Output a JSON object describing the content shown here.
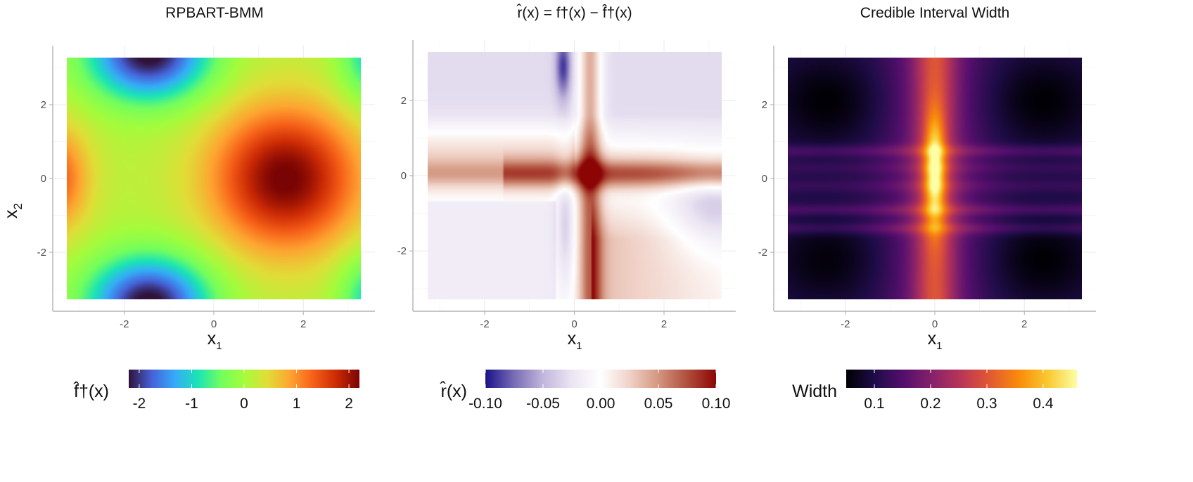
{
  "chart_data": [
    {
      "type": "heatmap",
      "title": "RPBART-BMM",
      "xlabel": "x1",
      "ylabel": "x2",
      "xlim": [
        -3.6,
        3.6
      ],
      "ylim": [
        -3.6,
        3.6
      ],
      "x_ticks": [
        "-2",
        "0",
        "2"
      ],
      "y_ticks": [
        "-2",
        "0",
        "2"
      ],
      "colorscale": "turbo",
      "legend": {
        "title": "f̂†(x)",
        "range": [
          -2.2,
          2.2
        ],
        "ticks": [
          "-2",
          "-1",
          "0",
          "1",
          "2"
        ],
        "placement": "bottom"
      },
      "features": [
        {
          "x": 1.6,
          "y": 0.0,
          "value": 2.2,
          "kind": "maximum"
        },
        {
          "x": -3.1,
          "y": 0.0,
          "value": 1.1,
          "kind": "local-maximum"
        },
        {
          "x": -1.5,
          "y": 3.1,
          "value": -2.2,
          "kind": "minimum"
        },
        {
          "x": -1.5,
          "y": -3.1,
          "value": -2.2,
          "kind": "minimum"
        }
      ]
    },
    {
      "type": "heatmap",
      "title": "r̂(x) = f†(x) − f̂†(x)",
      "xlabel": "x1",
      "ylabel": "",
      "xlim": [
        -3.6,
        3.6
      ],
      "ylim": [
        -3.6,
        3.6
      ],
      "x_ticks": [
        "-2",
        "0",
        "2"
      ],
      "y_ticks": [
        "-2",
        "0",
        "2"
      ],
      "colorscale": "diverging-purple-white-red",
      "legend": {
        "title": "r̂(x)",
        "range": [
          -0.1,
          0.1
        ],
        "ticks": [
          "-0.10",
          "-0.05",
          "0.00",
          "0.05",
          "0.10"
        ],
        "placement": "bottom"
      },
      "features": [
        {
          "x": 0.3,
          "y": 0.0,
          "value": 0.08,
          "kind": "positive-cross-band"
        },
        {
          "x": -0.3,
          "y": 2.9,
          "value": -0.07,
          "kind": "negative-spot"
        },
        {
          "x": 3.1,
          "y": -0.8,
          "value": -0.04,
          "kind": "negative-region"
        }
      ]
    },
    {
      "type": "heatmap",
      "title": "Credible Interval Width",
      "xlabel": "x1",
      "ylabel": "",
      "xlim": [
        -3.6,
        3.6
      ],
      "ylim": [
        -3.6,
        3.6
      ],
      "x_ticks": [
        "-2",
        "0",
        "2"
      ],
      "y_ticks": [
        "-2",
        "0",
        "2"
      ],
      "colorscale": "inferno",
      "legend": {
        "title": "Width",
        "range": [
          0.05,
          0.46
        ],
        "ticks": [
          "0.1",
          "0.2",
          "0.3",
          "0.4"
        ],
        "placement": "bottom"
      },
      "features": [
        {
          "x": 0.0,
          "y": 0.2,
          "value": 0.46,
          "kind": "maximum-vertical-band"
        },
        {
          "x": -2.4,
          "y": 2.0,
          "value": 0.05,
          "kind": "minimum"
        },
        {
          "x": 2.4,
          "y": -2.0,
          "value": 0.05,
          "kind": "minimum"
        }
      ]
    }
  ],
  "colors": {
    "axis_line": "#b3b3b3",
    "grid": "#ebebeb",
    "tick_text": "#4d4d4d"
  }
}
